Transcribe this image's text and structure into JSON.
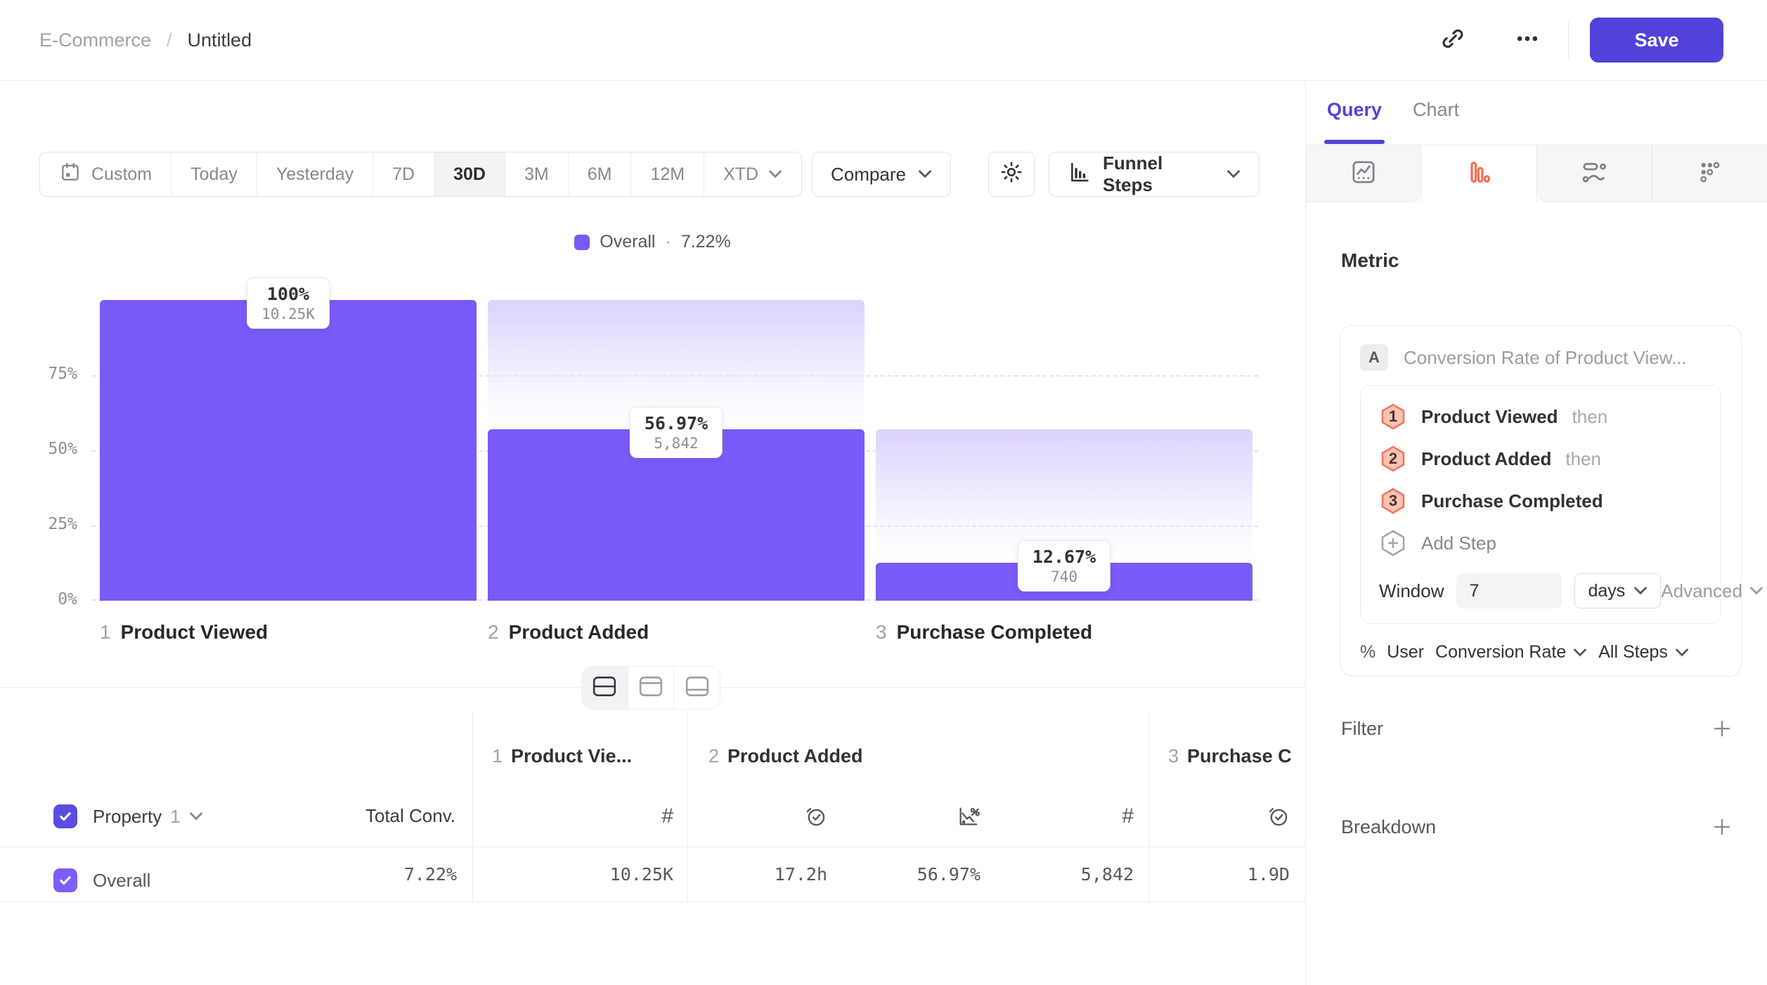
{
  "header": {
    "breadcrumb_parent": "E-Commerce",
    "breadcrumb_sep": "/",
    "breadcrumb_current": "Untitled",
    "save_label": "Save"
  },
  "toolbar": {
    "ranges": [
      "Custom",
      "Today",
      "Yesterday",
      "7D",
      "30D",
      "3M",
      "6M",
      "12M",
      "XTD"
    ],
    "active_range": "30D",
    "compare_label": "Compare",
    "view_label": "Funnel Steps"
  },
  "legend": {
    "name": "Overall",
    "sep": "·",
    "value": "7.22%"
  },
  "chart_data": {
    "type": "bar",
    "subtype": "funnel-steps",
    "categories": [
      "Product Viewed",
      "Product Added",
      "Purchase Completed"
    ],
    "step_numbers": [
      "1",
      "2",
      "3"
    ],
    "series": [
      {
        "name": "Overall",
        "conversion_pct": [
          100,
          56.97,
          12.67
        ],
        "counts": [
          10250,
          5842,
          740
        ],
        "pct_labels": [
          "100%",
          "56.97%",
          "12.67%"
        ],
        "count_labels": [
          "10.25K",
          "5,842",
          "740"
        ]
      }
    ],
    "overall_conversion": "7.22%",
    "ylim": [
      0,
      100
    ],
    "yticks": [
      75,
      50,
      25,
      0
    ],
    "ytick_labels": [
      "75%",
      "50%",
      "25%",
      "0%"
    ],
    "grid": "dashed-horizontal",
    "legend_position": "top-center",
    "bar_color": "#7A5AF8"
  },
  "view_toggle": {
    "modes": [
      "split",
      "chart-only",
      "table-only"
    ],
    "active": "split"
  },
  "table": {
    "property_label": "Property",
    "property_index": "1",
    "total_col": "Total Conv.",
    "steps": [
      {
        "num": "1",
        "name": "Product Vie..."
      },
      {
        "num": "2",
        "name": "Product Added"
      },
      {
        "num": "3",
        "name": "Purchase C"
      }
    ],
    "row": {
      "name": "Overall",
      "total": "7.22%",
      "values": [
        "10.25K",
        "17.2h",
        "56.97%",
        "5,842",
        "1.9D"
      ]
    }
  },
  "sidebar": {
    "tab_query": "Query",
    "tab_chart": "Chart",
    "chart_types": [
      "insights",
      "funnel",
      "flow",
      "retention"
    ],
    "active_chart_type": "funnel",
    "accent_orange": "#F96B51",
    "accent_purple": "#5143D9",
    "metric_heading": "Metric",
    "query_card": {
      "badge": "A",
      "title": "Conversion Rate of Product View...",
      "steps": [
        {
          "num": "1",
          "name": "Product Viewed",
          "conj": "then"
        },
        {
          "num": "2",
          "name": "Product Added",
          "conj": "then"
        },
        {
          "num": "3",
          "name": "Purchase Completed",
          "conj": ""
        }
      ],
      "add_step": "Add Step",
      "window_label": "Window",
      "window_value": "7",
      "window_unit": "days",
      "advanced_label": "Advanced",
      "measure_symbol": "%",
      "measure_entity": "User",
      "measure_type": "Conversion Rate",
      "measure_scope": "All Steps"
    },
    "filter_heading": "Filter",
    "breakdown_heading": "Breakdown"
  }
}
